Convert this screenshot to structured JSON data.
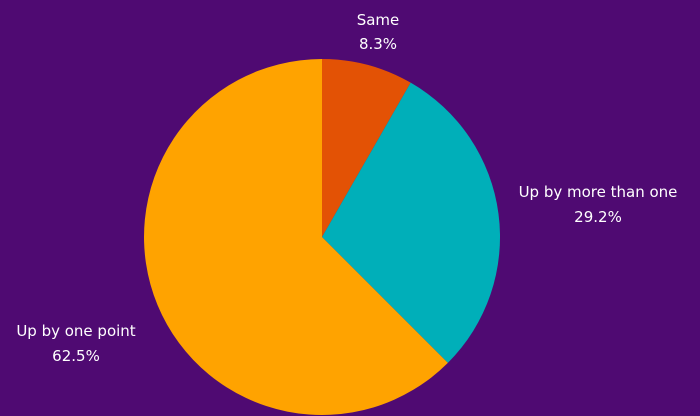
{
  "chart_data": {
    "type": "pie",
    "start_angle_deg": 0,
    "direction": "clockwise",
    "slices": [
      {
        "label": "Same",
        "value": 8.3,
        "value_label": "8.3%",
        "color": "#e35205"
      },
      {
        "label": "Up by more than one",
        "value": 29.2,
        "value_label": "29.2%",
        "color": "#00afb9"
      },
      {
        "label": "Up by one point",
        "value": 62.5,
        "value_label": "62.5%",
        "color": "#ffa300"
      }
    ],
    "legend": "none"
  },
  "colors": {
    "background": "#4f0a72",
    "label_text": "#ffffff"
  }
}
